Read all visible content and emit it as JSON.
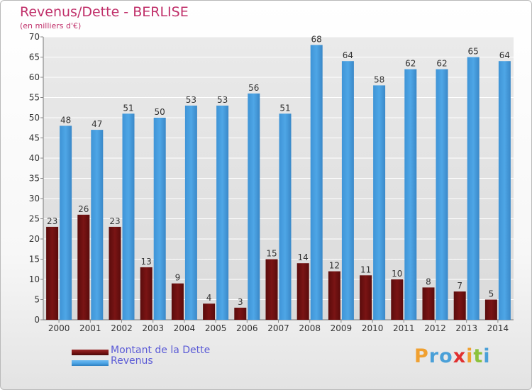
{
  "page": {
    "title": "Revenus/Dette - BERLISE",
    "subtitle": "(en milliers d'€)"
  },
  "colors": {
    "debt": "#7a1414",
    "revenue": "#4ea6e6",
    "grid": "#ffffff",
    "plot_bg": "#dadada",
    "text": "#333333",
    "title": "#c0306a"
  },
  "chart_data": {
    "type": "bar",
    "categories": [
      "2000",
      "2001",
      "2002",
      "2003",
      "2004",
      "2005",
      "2006",
      "2007",
      "2008",
      "2009",
      "2010",
      "2011",
      "2012",
      "2013",
      "2014"
    ],
    "series": [
      {
        "name": "Montant de la Dette",
        "values": [
          23,
          26,
          23,
          13,
          9,
          4,
          3,
          15,
          14,
          12,
          11,
          10,
          8,
          7,
          5
        ]
      },
      {
        "name": "Revenus",
        "values": [
          48,
          47,
          51,
          50,
          53,
          53,
          56,
          51,
          68,
          64,
          58,
          62,
          62,
          65,
          64
        ]
      }
    ],
    "ylim": [
      0,
      70
    ],
    "ytick_step": 5,
    "grid": true,
    "legend_position": "bottom-left"
  },
  "logo": {
    "text": "Proxiti",
    "letter_colors": [
      "#f0a030",
      "#4aa0d8",
      "#4aa0d8",
      "#e03030",
      "#f0a030",
      "#8cc23c",
      "#4aa0d8"
    ]
  }
}
